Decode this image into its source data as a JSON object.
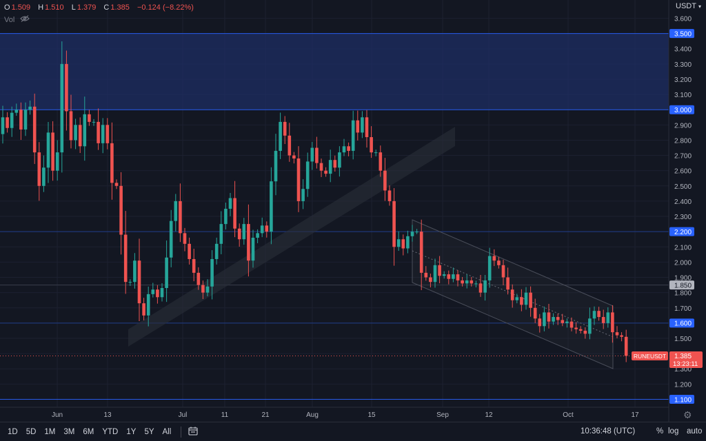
{
  "legend": {
    "o_label": "O",
    "o_value": "1.509",
    "h_label": "H",
    "h_value": "1.510",
    "l_label": "L",
    "l_value": "1.379",
    "c_label": "C",
    "c_value": "1.385",
    "change": "−0.124 (−8.22%)",
    "vol_label": "Vol",
    "vol_icon": "eye-hidden-icon"
  },
  "currency": "USDT",
  "symbol_tag": "RUNEUSDT",
  "price_tag": "1.385",
  "countdown": "13:23:11",
  "level_tags": [
    "3.500",
    "3.000",
    "2.200",
    "1.850",
    "1.600",
    "1.100"
  ],
  "bottom": {
    "ranges": [
      "1D",
      "5D",
      "1M",
      "3M",
      "6M",
      "YTD",
      "1Y",
      "5Y",
      "All"
    ],
    "calendar_icon": "calendar-icon",
    "clock": "10:36:48 (UTC)",
    "percent": "%",
    "log": "log",
    "auto": "auto",
    "settings_icon": "gear-icon"
  },
  "colors": {
    "background": "#131722",
    "up": "#26a69a",
    "down": "#ef5350",
    "zone": "#1e2d63",
    "level_line": "#2962ff",
    "label_blue": "#2962ff",
    "label_red": "#ef5350",
    "label_gray": "#b2b5be"
  },
  "chart_data": {
    "type": "candlestick",
    "symbol": "RUNEUSDT",
    "interval": "1D",
    "x_ticks": [
      "Jun",
      "13",
      "Jul",
      "11",
      "21",
      "Aug",
      "15",
      "Sep",
      "12",
      "Oct",
      "17"
    ],
    "y_ticks": [
      "3.600",
      "3.400",
      "3.300",
      "3.200",
      "3.100",
      "2.900",
      "2.800",
      "2.700",
      "2.600",
      "2.500",
      "2.400",
      "2.300",
      "2.100",
      "2.000",
      "1.900",
      "1.800",
      "1.700",
      "1.500",
      "1.400",
      "1.300",
      "1.200"
    ],
    "ylim": [
      1.05,
      3.65
    ],
    "grid": true,
    "zone": [
      3.0,
      3.5
    ],
    "levels": [
      3.5,
      3.0,
      2.2,
      1.85,
      1.6,
      1.1
    ],
    "last_price": 1.385,
    "closes": [
      2.95,
      2.88,
      2.98,
      3.0,
      2.87,
      3.0,
      3.02,
      2.72,
      2.5,
      2.62,
      2.85,
      2.6,
      2.72,
      3.3,
      2.99,
      2.8,
      2.9,
      2.76,
      2.97,
      2.92,
      2.92,
      2.78,
      2.9,
      2.78,
      2.52,
      2.5,
      2.18,
      1.87,
      1.87,
      2.01,
      1.73,
      1.65,
      1.79,
      1.82,
      1.77,
      1.83,
      2.03,
      2.27,
      2.4,
      2.19,
      2.12,
      2.02,
      1.93,
      1.85,
      1.8,
      1.84,
      2.02,
      2.12,
      2.25,
      2.35,
      2.42,
      2.22,
      2.15,
      2.25,
      2.01,
      2.16,
      2.19,
      2.24,
      2.2,
      2.53,
      2.73,
      2.92,
      2.83,
      2.7,
      2.68,
      2.4,
      2.48,
      2.66,
      2.75,
      2.65,
      2.6,
      2.58,
      2.67,
      2.62,
      2.72,
      2.76,
      2.73,
      2.93,
      2.85,
      2.95,
      2.82,
      2.72,
      2.72,
      2.6,
      2.47,
      2.4,
      2.1,
      2.15,
      2.09,
      2.17,
      2.2,
      2.2,
      1.93,
      1.9,
      1.87,
      1.98,
      1.91,
      1.92,
      1.89,
      1.92,
      1.88,
      1.86,
      1.88,
      1.86,
      1.86,
      1.8,
      1.88,
      2.04,
      2.01,
      1.98,
      1.9,
      1.82,
      1.75,
      1.77,
      1.72,
      1.8,
      1.7,
      1.63,
      1.58,
      1.67,
      1.61,
      1.64,
      1.62,
      1.6,
      1.61,
      1.57,
      1.56,
      1.55,
      1.53,
      1.63,
      1.68,
      1.64,
      1.6,
      1.67,
      1.54,
      1.52,
      1.51,
      1.385
    ]
  }
}
